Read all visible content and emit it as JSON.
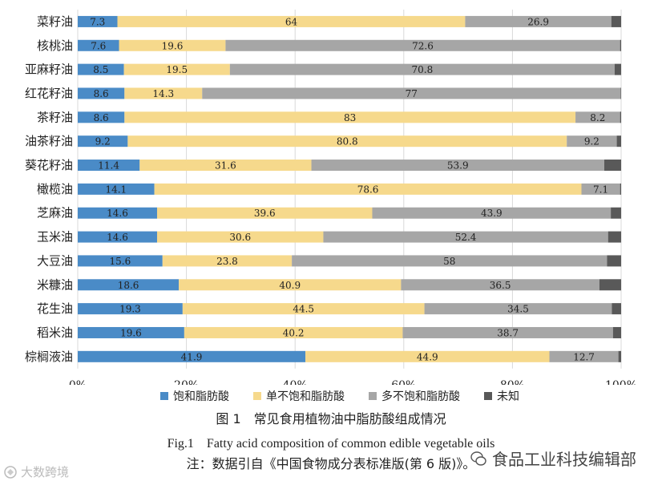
{
  "chart_data": {
    "type": "bar",
    "orientation": "horizontal",
    "stacked": true,
    "normalized": true,
    "categories": [
      "菜籽油",
      "核桃油",
      "亚麻籽油",
      "红花籽油",
      "茶籽油",
      "油茶籽油",
      "葵花籽油",
      "橄榄油",
      "芝麻油",
      "玉米油",
      "大豆油",
      "米糠油",
      "花生油",
      "稻米油",
      "棕榈液油"
    ],
    "series": [
      {
        "name": "饱和脂肪酸",
        "color": "#4a8bc7",
        "values": [
          7.3,
          7.6,
          8.5,
          8.6,
          8.6,
          9.2,
          11.4,
          14.1,
          14.6,
          14.6,
          15.6,
          18.6,
          19.3,
          19.6,
          41.9
        ]
      },
      {
        "name": "单不饱和脂肪酸",
        "color": "#f6d98c",
        "values": [
          64,
          19.6,
          19.5,
          14.3,
          83,
          80.8,
          31.6,
          78.6,
          39.6,
          30.6,
          23.8,
          40.9,
          44.5,
          40.2,
          44.9
        ]
      },
      {
        "name": "多不饱和脂肪酸",
        "color": "#a6a6a6",
        "values": [
          26.9,
          72.6,
          70.8,
          77,
          8.2,
          9.2,
          53.9,
          7.1,
          43.9,
          52.4,
          58,
          36.5,
          34.5,
          38.7,
          12.7
        ]
      },
      {
        "name": "未知",
        "color": "#595959",
        "values": [
          1.8,
          0.2,
          1.2,
          0.1,
          0.2,
          0.8,
          3.1,
          0.2,
          1.9,
          2.4,
          2.6,
          4.0,
          1.7,
          1.5,
          0.5
        ]
      }
    ],
    "xticks": [
      "0%",
      "20%",
      "40%",
      "60%",
      "80%",
      "100%"
    ],
    "xlim": [
      0,
      100
    ],
    "grid": true,
    "legend": "bottom"
  },
  "caption": {
    "cn": "图 1　常见食用植物油中脂肪酸组成情况",
    "en": "Fig.1　Fatty acid composition of common edible vegetable oils",
    "note": "注：数据引自《中国食物成分表标准版(第 6 版)》。"
  },
  "watermark": {
    "right": "食品工业科技编辑部",
    "left": "大数跨境"
  }
}
